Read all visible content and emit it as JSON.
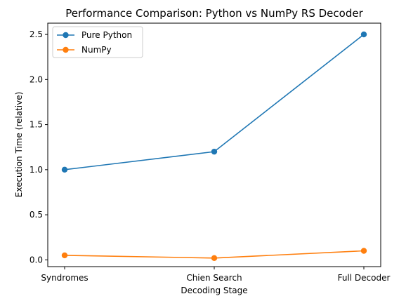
{
  "chart_data": {
    "type": "line",
    "title": "Performance Comparison: Python vs NumPy RS Decoder",
    "xlabel": "Decoding Stage",
    "ylabel": "Execution Time (relative)",
    "categories": [
      "Syndromes",
      "Chien Search",
      "Full Decoder"
    ],
    "series": [
      {
        "name": "Pure Python",
        "values": [
          1.0,
          1.2,
          2.5
        ],
        "color": "#1f77b4"
      },
      {
        "name": "NumPy",
        "values": [
          0.05,
          0.02,
          0.1
        ],
        "color": "#ff7f0e"
      }
    ],
    "ylim": [
      -0.075,
      2.625
    ],
    "yticks": [
      0.0,
      0.5,
      1.0,
      1.5,
      2.0,
      2.5
    ],
    "ytick_labels": [
      "0.0",
      "0.5",
      "1.0",
      "1.5",
      "2.0",
      "2.5"
    ],
    "grid": false,
    "legend": "top-left"
  }
}
